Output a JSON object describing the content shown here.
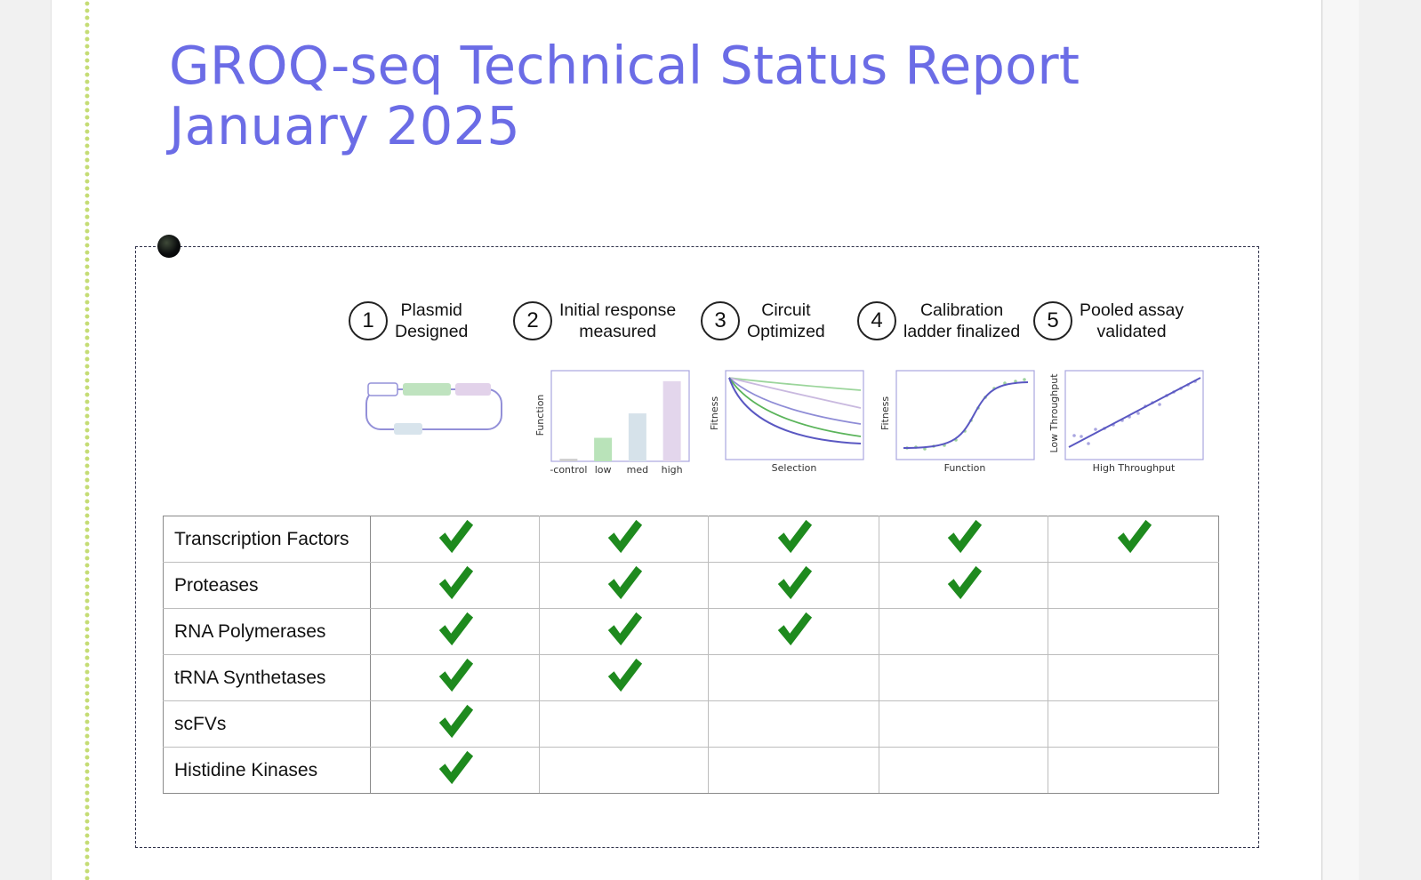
{
  "document": {
    "title_line1": "GROQ-seq Technical Status Report",
    "title_line2": "January 2025"
  },
  "colors": {
    "title": "#6b6ce6",
    "check": "#1e8a1e",
    "margin_guide": "#c5dc74",
    "plot_frame": "#a9a6e0"
  },
  "pipeline": {
    "steps": [
      {
        "number": "1",
        "label": "Plasmid\nDesigned"
      },
      {
        "number": "2",
        "label": "Initial response\nmeasured"
      },
      {
        "number": "3",
        "label": "Circuit\nOptimized"
      },
      {
        "number": "4",
        "label": "Calibration\nladder finalized"
      },
      {
        "number": "5",
        "label": "Pooled assay\nvalidated"
      }
    ],
    "thumbnails": {
      "response": {
        "ylabel": "Function",
        "categories": [
          "-control",
          "low",
          "med",
          "high"
        ],
        "values": [
          0.03,
          0.27,
          0.55,
          0.92
        ]
      },
      "circuit": {
        "ylabel": "Fitness",
        "xlabel": "Selection"
      },
      "calibration": {
        "ylabel": "Fitness",
        "xlabel": "Function"
      },
      "pooled": {
        "ylabel": "Low Throughput",
        "xlabel": "High Throughput"
      }
    }
  },
  "status_table": {
    "rows": [
      {
        "label": "Transcription Factors",
        "completed": [
          true,
          true,
          true,
          true,
          true
        ]
      },
      {
        "label": "Proteases",
        "completed": [
          true,
          true,
          true,
          true,
          false
        ]
      },
      {
        "label": "RNA Polymerases",
        "completed": [
          true,
          true,
          true,
          false,
          false
        ]
      },
      {
        "label": "tRNA Synthetases",
        "completed": [
          true,
          true,
          false,
          false,
          false
        ]
      },
      {
        "label": "scFVs",
        "completed": [
          true,
          false,
          false,
          false,
          false
        ]
      },
      {
        "label": "Histidine Kinases",
        "completed": [
          true,
          false,
          false,
          false,
          false
        ]
      }
    ],
    "check_icon": "check-mark-icon"
  }
}
